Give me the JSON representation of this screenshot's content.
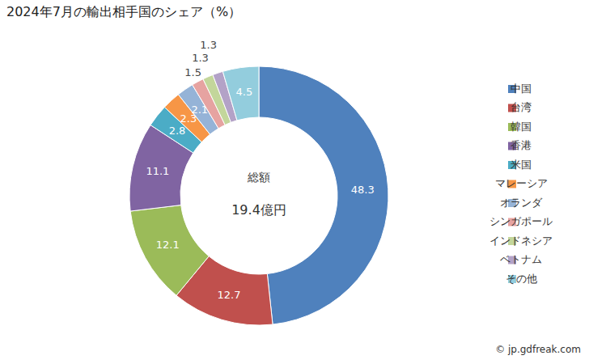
{
  "chart_data": {
    "type": "pie",
    "title": "2024年7月の輸出相手国のシェア（%）",
    "categories": [
      "中国",
      "台湾",
      "韓国",
      "香港",
      "米国",
      "マレーシア",
      "オランダ",
      "シンガポール",
      "インドネシア",
      "ベトナム",
      "その他"
    ],
    "values": [
      48.3,
      12.7,
      12.1,
      11.1,
      2.8,
      2.3,
      2.1,
      1.5,
      1.3,
      1.3,
      4.5
    ],
    "colors": [
      "#4F81BD",
      "#C0504D",
      "#9BBB59",
      "#8064A2",
      "#4BACC6",
      "#F79646",
      "#95B3D7",
      "#E6A3A1",
      "#C3D69B",
      "#B3A2C7",
      "#93CDDD"
    ],
    "data_labels": true,
    "legend": "right",
    "annotations": [
      "総額",
      "19.4億円"
    ],
    "source": "© jp.gdfreak.com"
  }
}
